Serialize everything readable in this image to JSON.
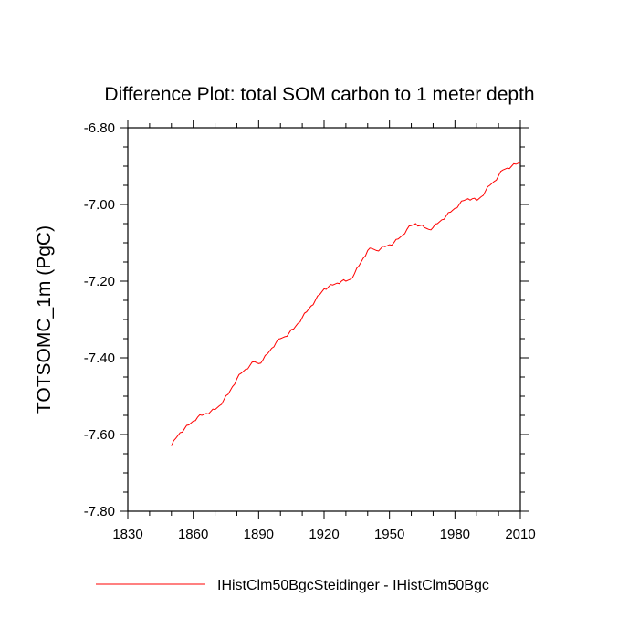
{
  "chart_data": {
    "type": "line",
    "title": "Difference Plot: total SOM carbon to 1 meter depth",
    "xlabel": "",
    "ylabel": "TOTSOMC_1m  (PgC)",
    "xlim": [
      1830,
      2010
    ],
    "ylim": [
      -7.8,
      -6.8
    ],
    "xticks": [
      1830,
      1860,
      1890,
      1920,
      1950,
      1980,
      2010
    ],
    "xtick_labels": [
      "1830",
      "1860",
      "1890",
      "1920",
      "1950",
      "1980",
      "2010"
    ],
    "yticks": [
      -7.8,
      -7.6,
      -7.4,
      -7.2,
      -7.0,
      -6.8
    ],
    "ytick_labels": [
      "-7.80",
      "-7.60",
      "-7.40",
      "-7.20",
      "-7.00",
      "-6.80"
    ],
    "grid": false,
    "legend_position": "bottom",
    "series": [
      {
        "name": "IHistClm50BgcSteidinger - IHistClm50Bgc",
        "color": "#ff0000",
        "x": [
          1850,
          1852,
          1854,
          1856,
          1858,
          1860,
          1862,
          1864,
          1866,
          1868,
          1870,
          1872,
          1874,
          1876,
          1878,
          1880,
          1882,
          1884,
          1886,
          1888,
          1890,
          1892,
          1894,
          1896,
          1898,
          1900,
          1902,
          1904,
          1906,
          1908,
          1910,
          1912,
          1914,
          1916,
          1918,
          1920,
          1922,
          1924,
          1926,
          1928,
          1930,
          1932,
          1934,
          1936,
          1938,
          1940,
          1942,
          1944,
          1946,
          1948,
          1950,
          1952,
          1954,
          1956,
          1958,
          1960,
          1962,
          1964,
          1966,
          1968,
          1970,
          1972,
          1974,
          1976,
          1978,
          1980,
          1982,
          1984,
          1986,
          1988,
          1990,
          1992,
          1994,
          1996,
          1998,
          2000,
          2002,
          2004,
          2006,
          2008,
          2010
        ],
        "y": [
          -7.63,
          -7.61,
          -7.595,
          -7.585,
          -7.575,
          -7.565,
          -7.555,
          -7.55,
          -7.545,
          -7.54,
          -7.535,
          -7.525,
          -7.51,
          -7.495,
          -7.475,
          -7.455,
          -7.44,
          -7.43,
          -7.42,
          -7.41,
          -7.415,
          -7.405,
          -7.39,
          -7.375,
          -7.36,
          -7.35,
          -7.345,
          -7.335,
          -7.325,
          -7.31,
          -7.295,
          -7.28,
          -7.265,
          -7.25,
          -7.235,
          -7.22,
          -7.215,
          -7.21,
          -7.205,
          -7.2,
          -7.2,
          -7.195,
          -7.18,
          -7.16,
          -7.14,
          -7.12,
          -7.115,
          -7.12,
          -7.115,
          -7.11,
          -7.105,
          -7.1,
          -7.09,
          -7.08,
          -7.065,
          -7.055,
          -7.05,
          -7.055,
          -7.06,
          -7.065,
          -7.06,
          -7.05,
          -7.04,
          -7.03,
          -7.02,
          -7.01,
          -7.0,
          -6.99,
          -6.985,
          -6.985,
          -6.99,
          -6.98,
          -6.965,
          -6.95,
          -6.94,
          -6.925,
          -6.91,
          -6.905,
          -6.9,
          -6.895,
          -6.89
        ]
      }
    ]
  }
}
